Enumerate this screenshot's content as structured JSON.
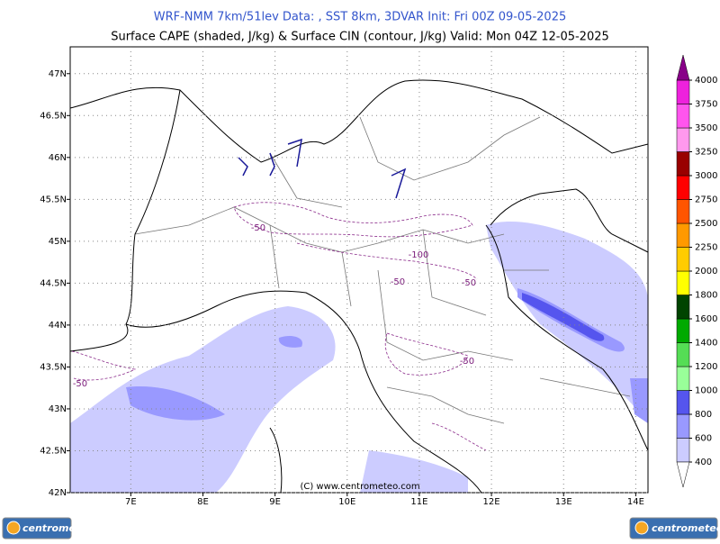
{
  "header": {
    "title": "WRF-NMM 7km/51lev  Data: , SST 8km, 3DVAR  Init: Fri 00Z 09-05-2025",
    "subtitle": "Surface CAPE (shaded, J/kg) & Surface CIN (contour, J/kg)  Valid: Mon 04Z 12-05-2025"
  },
  "map": {
    "lon_range": [
      6.16,
      14.17
    ],
    "lat_range": [
      42,
      47.32
    ],
    "lon_ticks": [
      {
        "value": 7,
        "label": "7E"
      },
      {
        "value": 8,
        "label": "8E"
      },
      {
        "value": 9,
        "label": "9E"
      },
      {
        "value": 10,
        "label": "10E"
      },
      {
        "value": 11,
        "label": "11E"
      },
      {
        "value": 12,
        "label": "12E"
      },
      {
        "value": 13,
        "label": "13E"
      },
      {
        "value": 14,
        "label": "14E"
      }
    ],
    "lat_ticks": [
      {
        "value": 42,
        "label": "42N"
      },
      {
        "value": 42.5,
        "label": "42.5N"
      },
      {
        "value": 43,
        "label": "43N"
      },
      {
        "value": 43.5,
        "label": "43.5N"
      },
      {
        "value": 44,
        "label": "44N"
      },
      {
        "value": 44.5,
        "label": "44.5N"
      },
      {
        "value": 45,
        "label": "45N"
      },
      {
        "value": 45.5,
        "label": "45.5N"
      },
      {
        "value": 46,
        "label": "46N"
      },
      {
        "value": 46.5,
        "label": "46.5N"
      },
      {
        "value": 47,
        "label": "47N"
      }
    ],
    "contour_labels": [
      -50,
      -100,
      -50,
      -50,
      -50,
      -50
    ],
    "copyright": "(C) www.centrometeo.com"
  },
  "colorbar": {
    "levels": [
      400,
      600,
      800,
      1000,
      1200,
      1400,
      1600,
      1800,
      2000,
      2250,
      2500,
      2750,
      3000,
      3250,
      3500,
      3750,
      4000
    ],
    "colors": [
      "#ccccff",
      "#9999ff",
      "#5555ee",
      "#99ff99",
      "#55dd55",
      "#00aa00",
      "#004400",
      "#ffff00",
      "#ffcc00",
      "#ff9900",
      "#ff5500",
      "#ff0000",
      "#990000",
      "#ff99ee",
      "#ff55ee",
      "#ee22dd"
    ],
    "extend_color": "#880088"
  },
  "footer": {
    "logos": [
      "centrometeo",
      "centrometeo"
    ]
  }
}
